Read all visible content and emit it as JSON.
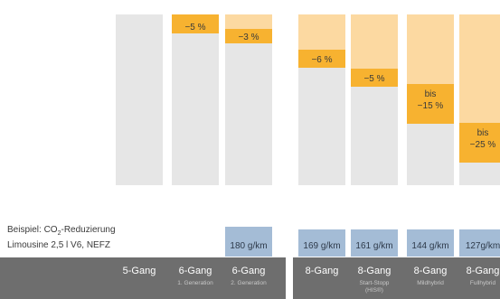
{
  "chart_data": {
    "type": "bar",
    "caption": {
      "line1_prefix": "Beispiel: CO",
      "line1_subscript": "2",
      "line1_suffix": "-Reduzierung",
      "line2": "Limousine 2,5 l V6, NEFZ"
    },
    "colors": {
      "base_bar": "#e6e6e6",
      "reduction": "#f7b230",
      "reduction_light": "#fcd9a1",
      "emission_box": "#a4bcd6",
      "footer": "#6e6e6e",
      "footer_text": "#ffffff",
      "footer_subtext": "#c8c8c8"
    },
    "categories": [
      {
        "label": "5-Gang",
        "sublabel": "",
        "reduction_label": "",
        "reduction_pct": 0,
        "emission_label": ""
      },
      {
        "label": "6-Gang",
        "sublabel": "1. Generation",
        "reduction_label": "−5 %",
        "reduction_pct": 5,
        "emission_label": ""
      },
      {
        "label": "6-Gang",
        "sublabel": "2. Generation",
        "reduction_label": "−3 %",
        "reduction_pct": 3,
        "emission_label": "180 g/km"
      },
      {
        "label": "8-Gang",
        "sublabel": "",
        "reduction_label": "−6 %",
        "reduction_pct": 6,
        "emission_label": "169 g/km"
      },
      {
        "label": "8-Gang",
        "sublabel": "Start-Stopp (HIS®)",
        "reduction_label": "−5 %",
        "reduction_pct": 5,
        "emission_label": "161 g/km"
      },
      {
        "label": "8-Gang",
        "sublabel": "Mildhybrid",
        "reduction_label": "bis\n−15 %",
        "reduction_pct": 15,
        "emission_label": "144 g/km"
      },
      {
        "label": "8-Gang",
        "sublabel": "Fullhybrid",
        "reduction_label": "bis\n−25 %",
        "reduction_pct": 25,
        "emission_label": "127g/km"
      }
    ]
  }
}
